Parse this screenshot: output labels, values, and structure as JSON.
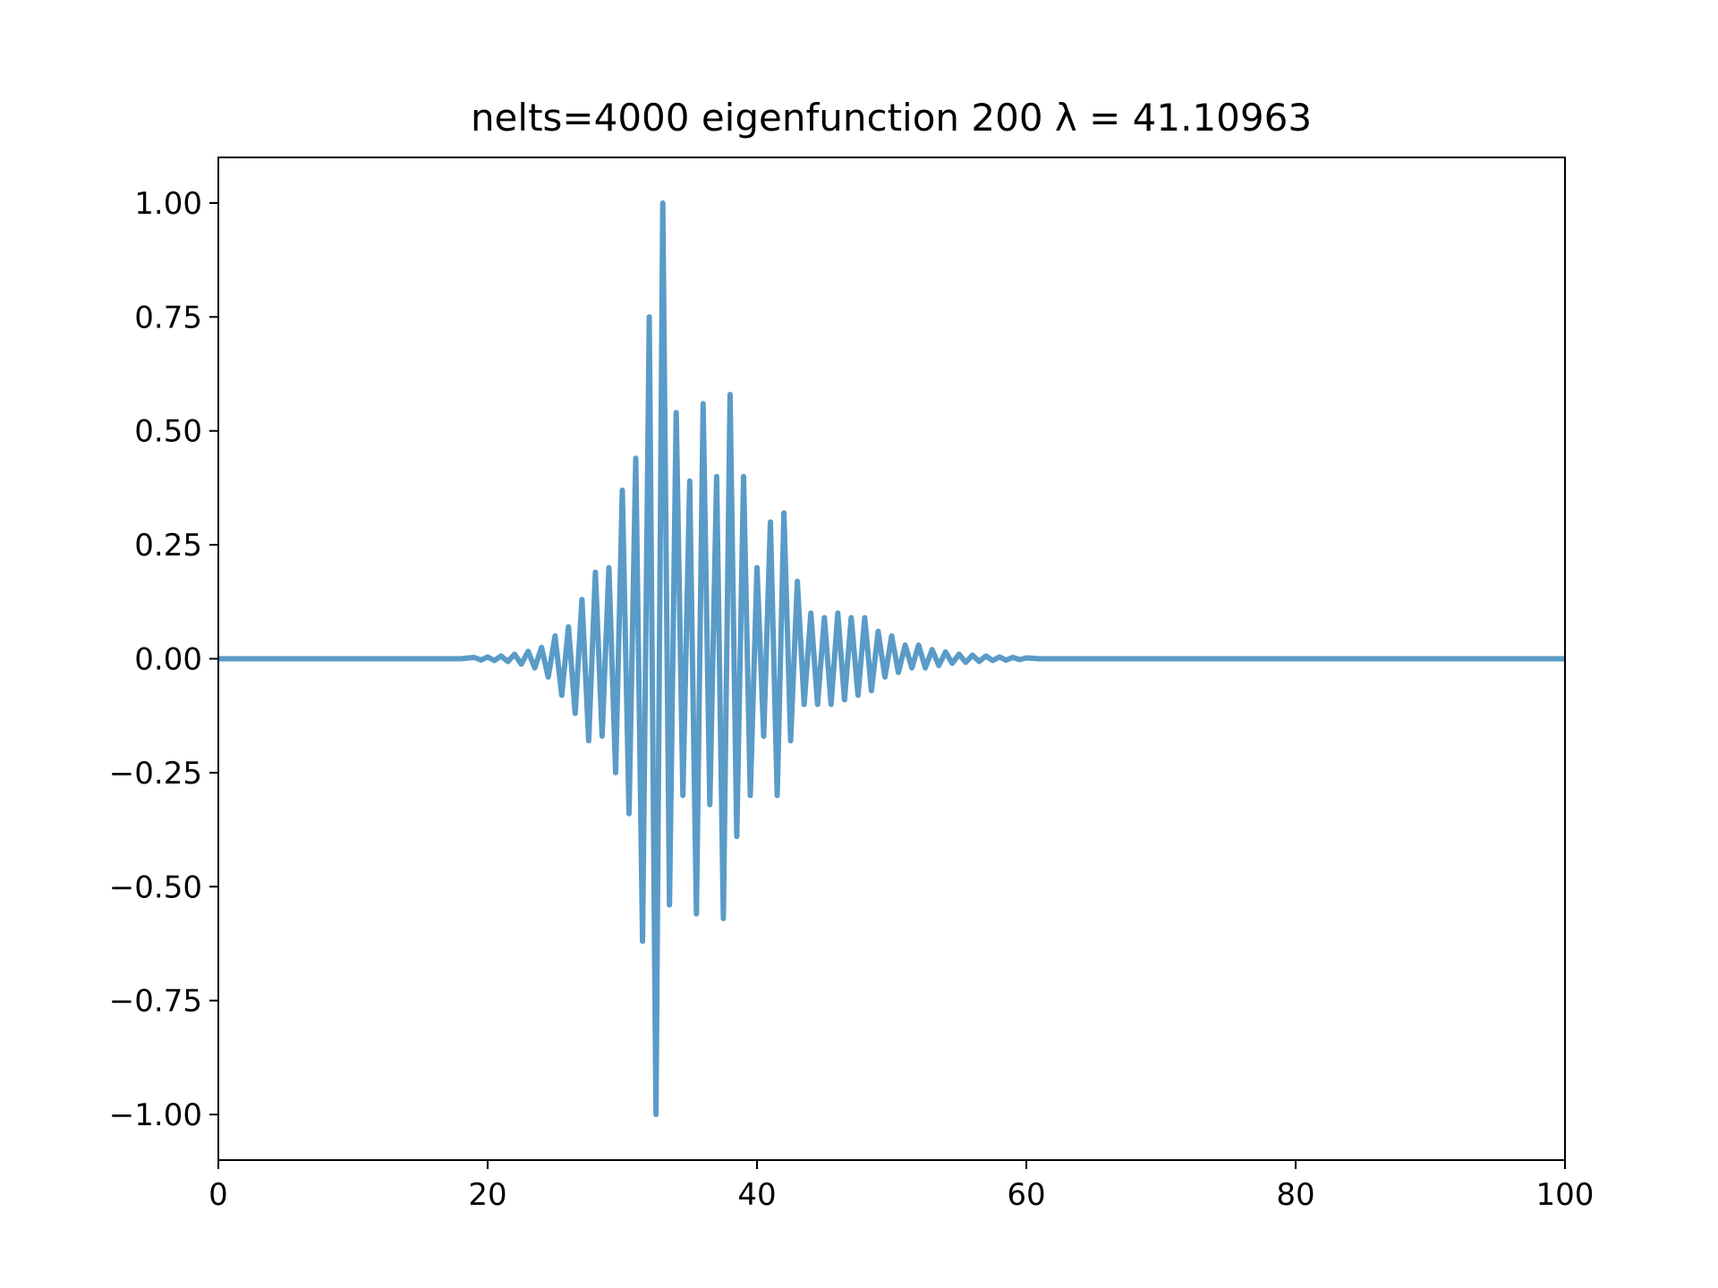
{
  "chart_data": {
    "type": "line",
    "title": "nelts=4000  eigenfunction 200  λ = 41.10963",
    "xlabel": "",
    "ylabel": "",
    "xlim": [
      0,
      100
    ],
    "ylim": [
      -1.1,
      1.1
    ],
    "x_ticks": [
      0,
      20,
      40,
      60,
      80,
      100
    ],
    "x_tick_labels": [
      "0",
      "20",
      "40",
      "60",
      "80",
      "100"
    ],
    "y_ticks": [
      1.0,
      0.75,
      0.5,
      0.25,
      0.0,
      -0.25,
      -0.5,
      -0.75,
      -1.0
    ],
    "y_tick_labels": [
      "1.00",
      "0.75",
      "0.50",
      "0.25",
      "0.00",
      "−0.25",
      "−0.50",
      "−0.75",
      "−1.00"
    ],
    "grid": false,
    "colors": {
      "series": "#5a9bc7",
      "axes": "#000000",
      "background": "#ffffff"
    },
    "series": [
      {
        "x": [
          0,
          10,
          15,
          18,
          19.0,
          19.5,
          20.0,
          20.5,
          21.0,
          21.5,
          22.0,
          22.5,
          23.0,
          23.5,
          24.0,
          24.5,
          25.0,
          25.5,
          26.0,
          26.5,
          27.0,
          27.5,
          28.0,
          28.5,
          29.0,
          29.5,
          30.0,
          30.5,
          31.0,
          31.5,
          32.0,
          32.5,
          33.0,
          33.5,
          34.0,
          34.5,
          35.0,
          35.5,
          36.0,
          36.5,
          37.0,
          37.5,
          38.0,
          38.5,
          39.0,
          39.5,
          40.0,
          40.5,
          41.0,
          41.5,
          42.0,
          42.5,
          43.0,
          43.5,
          44.0,
          44.5,
          45.0,
          45.5,
          46.0,
          46.5,
          47.0,
          47.5,
          48.0,
          48.5,
          49.0,
          49.5,
          50.0,
          50.5,
          51.0,
          51.5,
          52.0,
          52.5,
          53.0,
          53.5,
          54.0,
          54.5,
          55.0,
          55.5,
          56.0,
          56.5,
          57.0,
          57.5,
          58.0,
          58.5,
          59.0,
          59.5,
          60.0,
          61.0,
          62.0,
          65,
          70,
          80,
          90,
          100
        ],
        "y": [
          0.0,
          0.0,
          0.0,
          0.0,
          0.003,
          -0.003,
          0.004,
          -0.004,
          0.006,
          -0.006,
          0.01,
          -0.012,
          0.016,
          -0.02,
          0.025,
          -0.04,
          0.05,
          -0.08,
          0.07,
          -0.12,
          0.13,
          -0.18,
          0.19,
          -0.17,
          0.2,
          -0.25,
          0.37,
          -0.34,
          0.44,
          -0.62,
          0.75,
          -1.0,
          1.0,
          -0.54,
          0.54,
          -0.3,
          0.39,
          -0.56,
          0.56,
          -0.32,
          0.4,
          -0.57,
          0.58,
          -0.39,
          0.4,
          -0.3,
          0.2,
          -0.17,
          0.3,
          -0.3,
          0.32,
          -0.18,
          0.17,
          -0.1,
          0.1,
          -0.1,
          0.09,
          -0.1,
          0.1,
          -0.09,
          0.09,
          -0.08,
          0.09,
          -0.07,
          0.06,
          -0.04,
          0.05,
          -0.03,
          0.03,
          -0.02,
          0.03,
          -0.02,
          0.02,
          -0.015,
          0.015,
          -0.01,
          0.01,
          -0.008,
          0.008,
          -0.006,
          0.006,
          -0.004,
          0.004,
          -0.003,
          0.003,
          -0.002,
          0.002,
          0.0,
          0.0,
          0.0,
          0.0,
          0.0,
          0.0,
          0.0
        ]
      }
    ]
  }
}
